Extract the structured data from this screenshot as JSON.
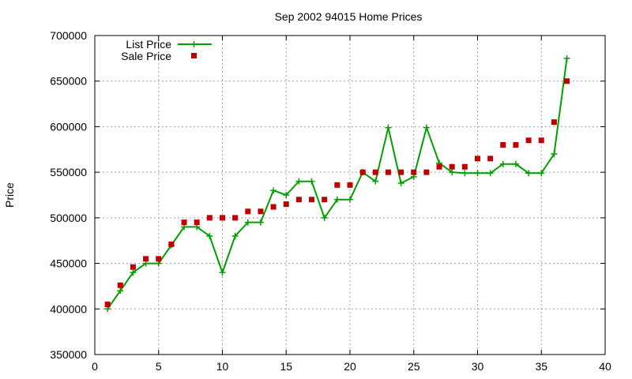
{
  "chart_data": {
    "type": "line",
    "title": "Sep 2002 94015 Home Prices",
    "xlabel": "",
    "ylabel": "Price",
    "xlim": [
      0,
      40
    ],
    "ylim": [
      350000,
      700000
    ],
    "x_ticks": [
      "0",
      "5",
      "10",
      "15",
      "20",
      "25",
      "30",
      "35",
      "40"
    ],
    "y_ticks": [
      "350000",
      "400000",
      "450000",
      "500000",
      "550000",
      "600000",
      "650000",
      "700000"
    ],
    "grid": true,
    "legend_position": "top-left",
    "series": [
      {
        "name": "List Price",
        "style": "line-plus",
        "color": "#00a000",
        "x": [
          1,
          2,
          3,
          4,
          5,
          6,
          7,
          8,
          9,
          10,
          11,
          12,
          13,
          14,
          15,
          16,
          17,
          18,
          19,
          20,
          21,
          22,
          23,
          24,
          25,
          26,
          27,
          28,
          29,
          30,
          31,
          32,
          33,
          34,
          35,
          36,
          37
        ],
        "y": [
          400000,
          420000,
          440000,
          450000,
          450000,
          470000,
          490000,
          490000,
          480000,
          440000,
          480000,
          495000,
          495000,
          530000,
          525000,
          540000,
          540000,
          500000,
          520000,
          520000,
          550000,
          540000,
          599000,
          538000,
          545000,
          599000,
          560000,
          550000,
          549000,
          549000,
          549000,
          559000,
          559000,
          549000,
          549000,
          570000,
          675000
        ]
      },
      {
        "name": "Sale Price",
        "style": "square-points",
        "color": "#c00000",
        "x": [
          1,
          2,
          3,
          4,
          5,
          6,
          7,
          8,
          9,
          10,
          11,
          12,
          13,
          14,
          15,
          16,
          17,
          18,
          19,
          20,
          21,
          22,
          23,
          24,
          25,
          26,
          27,
          28,
          29,
          30,
          31,
          32,
          33,
          34,
          35,
          36,
          37
        ],
        "y": [
          405000,
          426000,
          446000,
          455000,
          455000,
          471000,
          495000,
          495000,
          500000,
          500000,
          500000,
          507000,
          507000,
          512000,
          515000,
          520000,
          520000,
          520000,
          536000,
          536000,
          550000,
          550000,
          550000,
          550000,
          550000,
          550000,
          556000,
          556000,
          556000,
          565000,
          565000,
          580000,
          580000,
          585000,
          585000,
          605000,
          650000
        ]
      }
    ]
  }
}
